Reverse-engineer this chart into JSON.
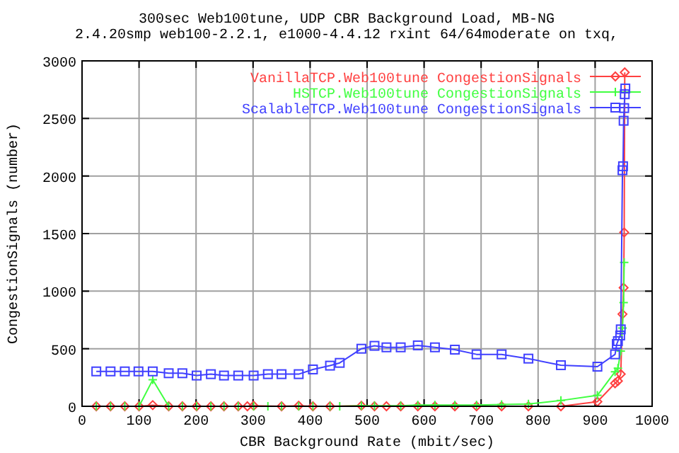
{
  "chart_data": {
    "type": "line",
    "title": "300sec Web100tune, UDP CBR Background Load, MB-NG",
    "subtitle": "2.4.20smp web100-2.2.1, e1000-4.4.12 rxint 64/64moderate on txq,",
    "xlabel": "CBR Background Rate (mbit/sec)",
    "ylabel": "CongestionSignals (number)",
    "xlim": [
      0,
      1000
    ],
    "xticks": [
      0,
      100,
      200,
      300,
      400,
      500,
      600,
      700,
      800,
      900,
      1000
    ],
    "ylim": [
      0,
      3000
    ],
    "yticks": [
      0,
      500,
      1000,
      1500,
      2000,
      2500,
      3000
    ],
    "grid": true,
    "legend": "top right",
    "series": [
      {
        "name": "VanillaTCP.Web100tune CongestionSignals",
        "color": "#ff4040",
        "marker": "diamond",
        "x": [
          25,
          50,
          75,
          100,
          124,
          152,
          176,
          201,
          226,
          249,
          274,
          290,
          301,
          350,
          380,
          405,
          435,
          490,
          513,
          534,
          559,
          589,
          619,
          654,
          692,
          736,
          783,
          840,
          904,
          935,
          940,
          945,
          948,
          950,
          951,
          952
        ],
        "values": [
          0,
          0,
          0,
          0,
          10,
          0,
          0,
          0,
          0,
          0,
          0,
          0,
          5,
          0,
          5,
          0,
          0,
          5,
          0,
          0,
          0,
          0,
          0,
          0,
          0,
          0,
          0,
          0,
          40,
          200,
          220,
          280,
          800,
          1030,
          1510,
          2900
        ]
      },
      {
        "name": "HSTCP.Web100tune CongestionSignals",
        "color": "#40ff40",
        "marker": "cross",
        "x": [
          25,
          50,
          75,
          100,
          124,
          152,
          176,
          201,
          226,
          249,
          274,
          301,
          326,
          350,
          380,
          405,
          435,
          452,
          490,
          513,
          559,
          589,
          619,
          654,
          692,
          736,
          783,
          840,
          904,
          935,
          940,
          945,
          948,
          950,
          951
        ],
        "values": [
          0,
          0,
          0,
          0,
          230,
          0,
          0,
          0,
          0,
          0,
          0,
          0,
          0,
          0,
          0,
          0,
          0,
          0,
          5,
          5,
          5,
          10,
          10,
          10,
          10,
          15,
          20,
          50,
          95,
          300,
          330,
          480,
          680,
          900,
          1250
        ]
      },
      {
        "name": "ScalableTCP.Web100tune CongestionSignals",
        "color": "#4040ff",
        "marker": "square",
        "x": [
          25,
          50,
          75,
          99,
          124,
          152,
          176,
          201,
          226,
          249,
          274,
          301,
          326,
          350,
          380,
          405,
          435,
          452,
          490,
          513,
          534,
          559,
          589,
          619,
          654,
          692,
          736,
          783,
          840,
          904,
          935,
          938,
          940,
          944,
          945,
          948,
          949,
          950,
          951,
          952,
          953
        ],
        "values": [
          303,
          303,
          303,
          303,
          303,
          287,
          287,
          267,
          279,
          267,
          267,
          267,
          279,
          279,
          279,
          320,
          353,
          377,
          500,
          525,
          512,
          512,
          529,
          512,
          492,
          451,
          451,
          414,
          357,
          344,
          451,
          541,
          566,
          615,
          668,
          2050,
          2085,
          2480,
          2590,
          2710,
          2760
        ]
      }
    ]
  }
}
